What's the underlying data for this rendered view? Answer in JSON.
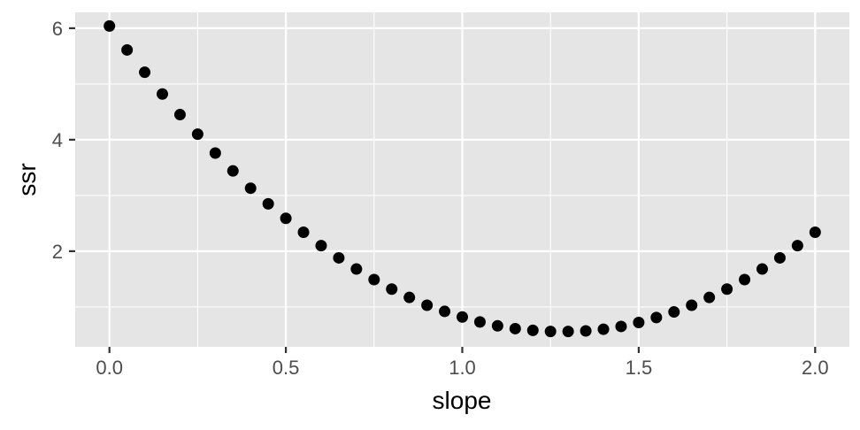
{
  "chart_data": {
    "type": "scatter",
    "xlabel": "slope",
    "ylabel": "ssr",
    "xlim": [
      -0.097,
      2.097
    ],
    "ylim": [
      0.284,
      6.284
    ],
    "x_ticks": [
      0,
      0.5,
      1,
      1.5,
      2
    ],
    "x_tick_labels": [
      "0.0",
      "0.5",
      "1.0",
      "1.5",
      "2.0"
    ],
    "y_ticks": [
      2,
      4,
      6
    ],
    "y_tick_labels": [
      "2",
      "4",
      "6"
    ],
    "grid": true,
    "background": "#e5e5e5",
    "point_color": "#000000",
    "series": [
      {
        "x": [
          0.0,
          0.05,
          0.1,
          0.15,
          0.2,
          0.25,
          0.3,
          0.35,
          0.4,
          0.45,
          0.5,
          0.55,
          0.6,
          0.65,
          0.7,
          0.75,
          0.8,
          0.85,
          0.9,
          0.95,
          1.0,
          1.05,
          1.1,
          1.15,
          1.2,
          1.25,
          1.3,
          1.35,
          1.4,
          1.45,
          1.5,
          1.55,
          1.6,
          1.65,
          1.7,
          1.75,
          1.8,
          1.85,
          1.9,
          1.95,
          2.0
        ],
        "y": [
          6.04,
          5.61,
          5.21,
          4.82,
          4.45,
          4.1,
          3.76,
          3.44,
          3.13,
          2.85,
          2.59,
          2.34,
          2.1,
          1.88,
          1.68,
          1.49,
          1.32,
          1.17,
          1.03,
          0.92,
          0.82,
          0.73,
          0.66,
          0.61,
          0.58,
          0.56,
          0.56,
          0.57,
          0.6,
          0.65,
          0.72,
          0.81,
          0.91,
          1.03,
          1.17,
          1.32,
          1.49,
          1.68,
          1.88,
          2.1,
          2.34
        ]
      }
    ]
  }
}
